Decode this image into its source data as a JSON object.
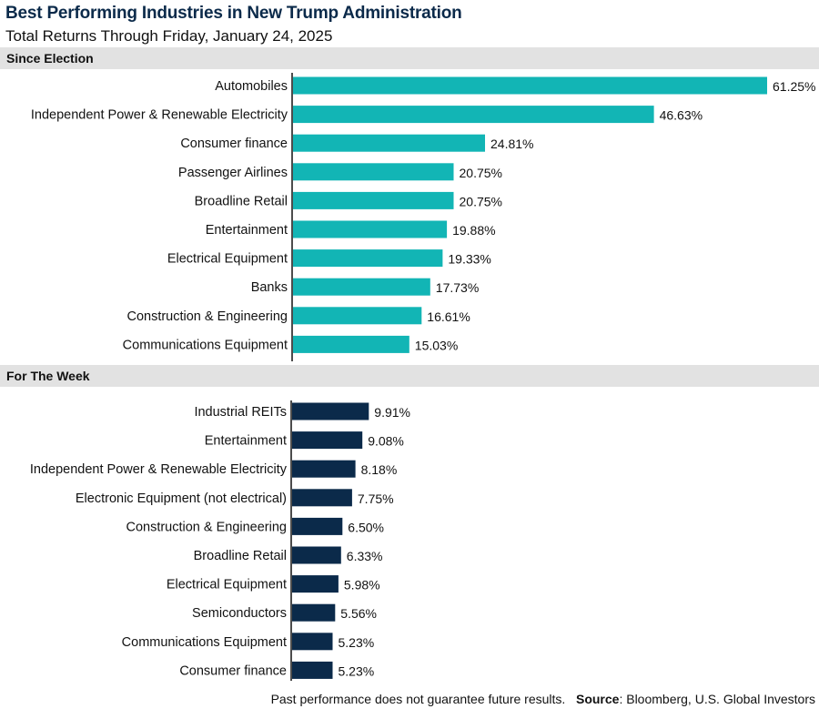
{
  "header": {
    "title": "Best Performing Industries in New Trump Administration",
    "subtitle": "Total Returns Through Friday, January 24, 2025"
  },
  "colors": {
    "since_election": "#12b5b5",
    "for_the_week": "#0b2a4a",
    "band": "#e2e2e2"
  },
  "chart_data": [
    {
      "type": "bar",
      "orientation": "horizontal",
      "title": "Since Election",
      "categories": [
        "Automobiles",
        "Independent Power & Renewable Electricity",
        "Consumer finance",
        "Passenger Airlines",
        "Broadline Retail",
        "Entertainment",
        "Electrical Equipment",
        "Banks",
        "Construction & Engineering",
        "Communications Equipment"
      ],
      "values": [
        61.25,
        46.63,
        24.81,
        20.75,
        20.75,
        19.88,
        19.33,
        17.73,
        16.61,
        15.03
      ],
      "value_labels": [
        "61.25%",
        "46.63%",
        "24.81%",
        "20.75%",
        "20.75%",
        "19.88%",
        "19.33%",
        "17.73%",
        "16.61%",
        "15.03%"
      ],
      "unit": "%",
      "xlim": [
        0,
        61.25
      ]
    },
    {
      "type": "bar",
      "orientation": "horizontal",
      "title": "For The Week",
      "categories": [
        "Industrial REITs",
        "Entertainment",
        "Independent Power & Renewable Electricity",
        "Electronic Equipment (not electrical)",
        "Construction & Engineering",
        "Broadline Retail",
        "Electrical Equipment",
        "Semiconductors",
        "Communications Equipment",
        "Consumer finance"
      ],
      "values": [
        9.91,
        9.08,
        8.18,
        7.75,
        6.5,
        6.33,
        5.98,
        5.56,
        5.23,
        5.23
      ],
      "value_labels": [
        "9.91%",
        "9.08%",
        "8.18%",
        "7.75%",
        "6.50%",
        "6.33%",
        "5.98%",
        "5.56%",
        "5.23%",
        "5.23%"
      ],
      "unit": "%",
      "xlim": [
        0,
        61.25
      ]
    }
  ],
  "footer": {
    "disclaimer": "Past performance does not guarantee future results.",
    "source_label": "Source",
    "source_text": ": Bloomberg, U.S. Global Investors"
  }
}
